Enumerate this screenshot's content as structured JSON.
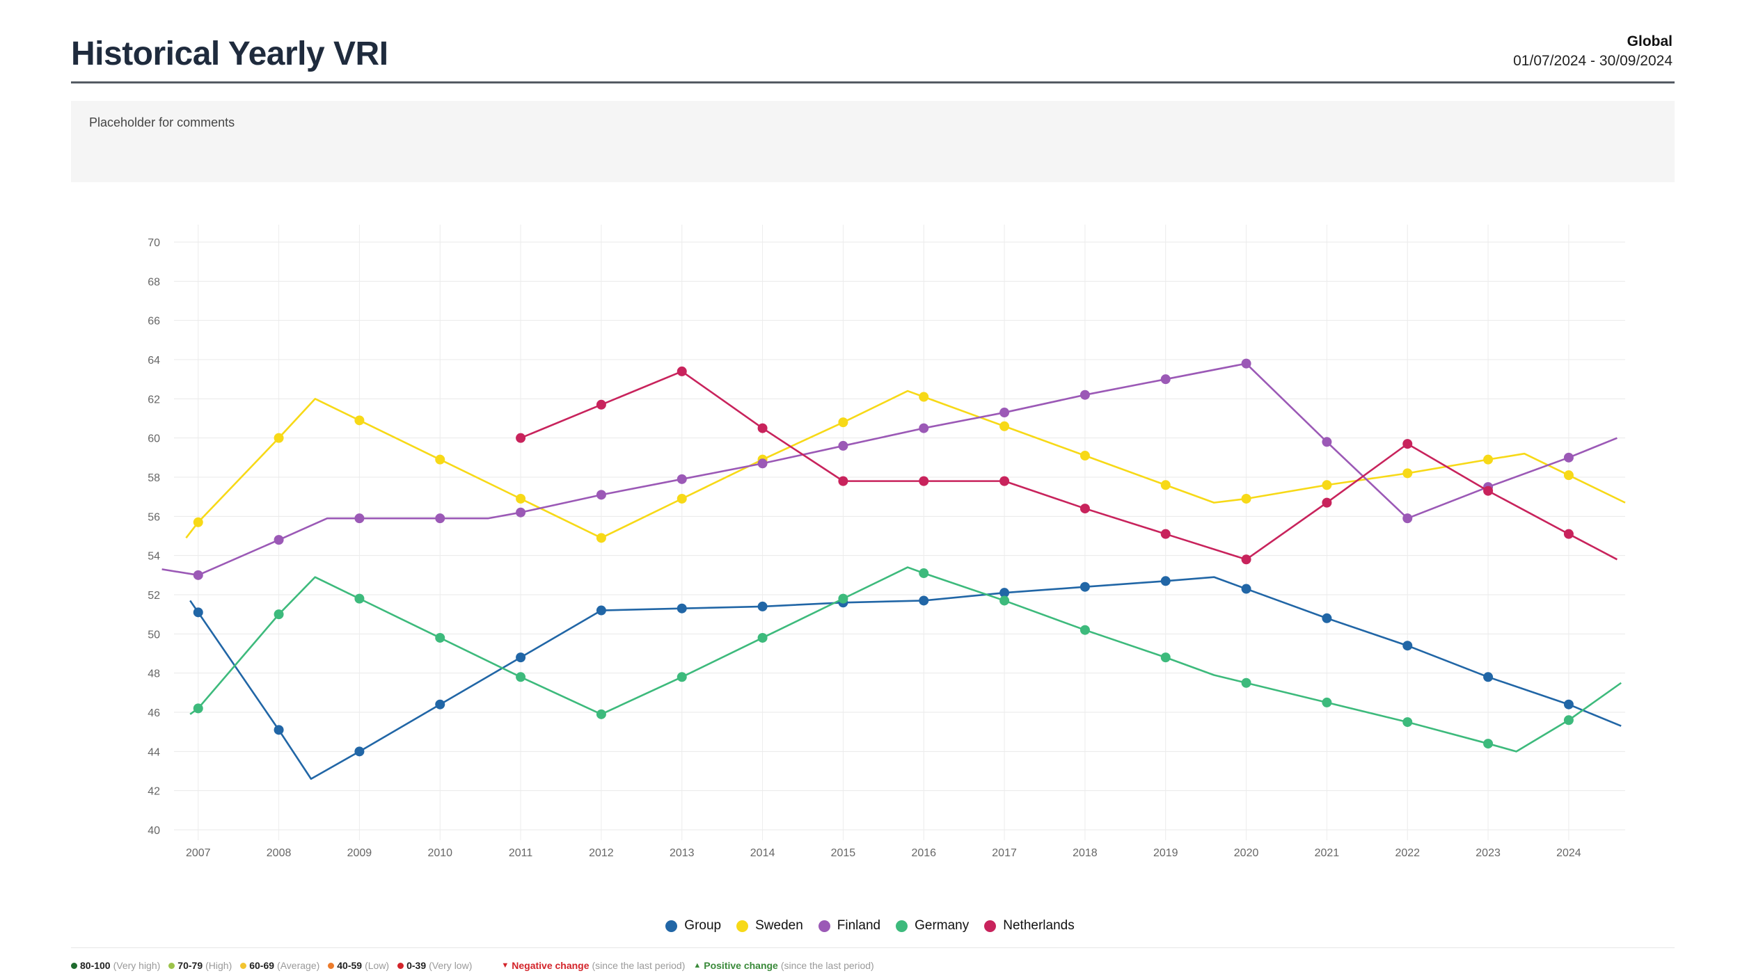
{
  "header": {
    "title": "Historical Yearly VRI",
    "region": "Global",
    "period": "01/07/2024 - 30/09/2024"
  },
  "comments": {
    "placeholder": "Placeholder for comments"
  },
  "chart_data": {
    "type": "line",
    "title": "",
    "xlabel": "",
    "ylabel": "",
    "ylim": [
      40,
      70
    ],
    "xlim": [
      2006.7,
      2024.7
    ],
    "yticks": [
      40,
      42,
      44,
      46,
      48,
      50,
      52,
      54,
      56,
      58,
      60,
      62,
      64,
      66,
      68,
      70
    ],
    "xticks": [
      2007,
      2008,
      2009,
      2010,
      2011,
      2012,
      2013,
      2014,
      2015,
      2016,
      2017,
      2018,
      2019,
      2020,
      2021,
      2022,
      2023,
      2024
    ],
    "grid": true,
    "legend_position": "bottom-center",
    "series": [
      {
        "name": "Group",
        "color": "#2166a6",
        "x": [
          2006.9,
          2007,
          2008,
          2008.4,
          2009,
          2010,
          2011,
          2012,
          2013,
          2014,
          2015,
          2016,
          2017,
          2018,
          2019,
          2019.6,
          2020,
          2021,
          2022,
          2023,
          2024,
          2024.65
        ],
        "y": [
          51.7,
          51.1,
          45.1,
          42.6,
          44.0,
          46.4,
          48.8,
          51.2,
          51.3,
          51.4,
          51.6,
          51.7,
          52.1,
          52.4,
          52.7,
          52.9,
          52.3,
          50.8,
          49.4,
          47.8,
          46.4,
          45.3
        ],
        "markers": [
          false,
          true,
          true,
          false,
          true,
          true,
          true,
          true,
          true,
          true,
          true,
          true,
          true,
          true,
          true,
          false,
          true,
          true,
          true,
          true,
          true,
          false
        ]
      },
      {
        "name": "Sweden",
        "color": "#f7d917",
        "x": [
          2006.85,
          2007,
          2008,
          2008.45,
          2009,
          2010,
          2011,
          2012,
          2013,
          2014,
          2015,
          2015.8,
          2016,
          2017,
          2018,
          2019,
          2019.6,
          2020,
          2021,
          2022,
          2023,
          2023.45,
          2024,
          2024.7
        ],
        "y": [
          54.9,
          55.7,
          60.0,
          62.0,
          60.9,
          58.9,
          56.9,
          54.9,
          56.9,
          58.9,
          60.8,
          62.4,
          62.1,
          60.6,
          59.1,
          57.6,
          56.7,
          56.9,
          57.6,
          58.2,
          58.9,
          59.2,
          58.1,
          56.7
        ],
        "markers": [
          false,
          true,
          true,
          false,
          true,
          true,
          true,
          true,
          true,
          true,
          true,
          false,
          true,
          true,
          true,
          true,
          false,
          true,
          true,
          true,
          true,
          false,
          true,
          false
        ]
      },
      {
        "name": "Finland",
        "color": "#9b59b6",
        "x": [
          2006.55,
          2007,
          2008,
          2008.6,
          2009,
          2010,
          2010.6,
          2011,
          2012,
          2013,
          2014,
          2015,
          2016,
          2017,
          2018,
          2019,
          2020,
          2021,
          2022,
          2023,
          2024,
          2024.6
        ],
        "y": [
          53.3,
          53.0,
          54.8,
          55.9,
          55.9,
          55.9,
          55.9,
          56.2,
          57.1,
          57.9,
          58.7,
          59.6,
          60.5,
          61.3,
          62.2,
          63.0,
          63.8,
          59.8,
          55.9,
          57.5,
          59.0,
          60.0
        ],
        "markers": [
          false,
          true,
          true,
          false,
          true,
          true,
          false,
          true,
          true,
          true,
          true,
          true,
          true,
          true,
          true,
          true,
          true,
          true,
          true,
          true,
          true,
          false
        ]
      },
      {
        "name": "Germany",
        "color": "#3dba7c",
        "x": [
          2006.9,
          2007,
          2008,
          2008.45,
          2009,
          2010,
          2011,
          2012,
          2013,
          2014,
          2015,
          2015.8,
          2016,
          2017,
          2018,
          2019,
          2019.6,
          2020,
          2021,
          2022,
          2023,
          2023.35,
          2024,
          2024.65
        ],
        "y": [
          45.9,
          46.2,
          51.0,
          52.9,
          51.8,
          49.8,
          47.8,
          45.9,
          47.8,
          49.8,
          51.8,
          53.4,
          53.1,
          51.7,
          50.2,
          48.8,
          47.9,
          47.5,
          46.5,
          45.5,
          44.4,
          44.0,
          45.6,
          47.5
        ],
        "markers": [
          false,
          true,
          true,
          false,
          true,
          true,
          true,
          true,
          true,
          true,
          true,
          false,
          true,
          true,
          true,
          true,
          false,
          true,
          true,
          true,
          true,
          false,
          true,
          false
        ]
      },
      {
        "name": "Netherlands",
        "color": "#c8235c",
        "x": [
          2011,
          2012,
          2013,
          2014,
          2015,
          2016,
          2017,
          2018,
          2019,
          2020,
          2021,
          2022,
          2023,
          2024,
          2024.6
        ],
        "y": [
          60.0,
          61.7,
          63.4,
          60.5,
          57.8,
          57.8,
          57.8,
          56.4,
          55.1,
          53.8,
          56.7,
          59.7,
          57.3,
          55.1,
          53.8
        ],
        "markers": [
          true,
          true,
          true,
          true,
          true,
          true,
          true,
          true,
          true,
          true,
          true,
          true,
          true,
          true,
          false
        ]
      }
    ]
  },
  "bands": [
    {
      "range": "80-100",
      "label": "(Very high)",
      "color": "#1e6b2e"
    },
    {
      "range": "70-79",
      "label": "(High)",
      "color": "#9cc34a"
    },
    {
      "range": "60-69",
      "label": "(Average)",
      "color": "#f2c430"
    },
    {
      "range": "40-59",
      "label": "(Low)",
      "color": "#ec7c2c"
    },
    {
      "range": "0-39",
      "label": "(Very low)",
      "color": "#d3242a"
    }
  ],
  "changes": [
    {
      "icon": "▼",
      "label": "Negative change",
      "note": "(since the last period)",
      "color": "#d3242a"
    },
    {
      "icon": "▲",
      "label": "Positive change",
      "note": "(since the last period)",
      "color": "#3a8a3a"
    }
  ]
}
